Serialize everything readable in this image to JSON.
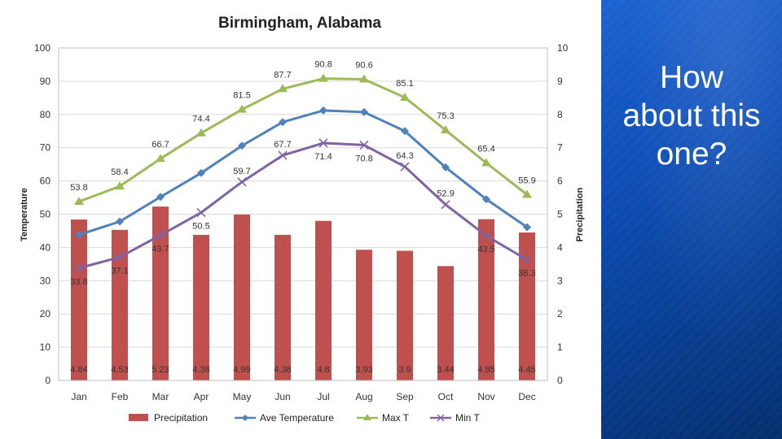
{
  "side": {
    "text_lines": [
      "How",
      "about this",
      "one?"
    ]
  },
  "chart_data": {
    "type": "bar",
    "title": "Birmingham, Alabama",
    "categories": [
      "Jan",
      "Feb",
      "Mar",
      "Apr",
      "May",
      "Jun",
      "Jul",
      "Aug",
      "Sep",
      "Oct",
      "Nov",
      "Dec"
    ],
    "ylabel_left": "Temperature",
    "ylabel_right": "Precipitation",
    "ylim_left": [
      0,
      100
    ],
    "ylim_right": [
      0,
      10
    ],
    "yticks_left": [
      0,
      10,
      20,
      30,
      40,
      50,
      60,
      70,
      80,
      90,
      100
    ],
    "yticks_right": [
      0,
      1,
      2,
      3,
      4,
      5,
      6,
      7,
      8,
      9,
      10
    ],
    "grid": true,
    "legend_position": "bottom",
    "series": [
      {
        "name": "Precipitation",
        "kind": "bar",
        "axis": "right",
        "color": "#c0504d",
        "values": [
          4.84,
          4.53,
          5.23,
          4.38,
          4.99,
          4.38,
          4.8,
          3.93,
          3.9,
          3.44,
          4.85,
          4.45
        ],
        "labels": [
          "4.84",
          "4.53",
          "5.23",
          "4.38",
          "4.99",
          "4.38",
          "4.8",
          "3.93",
          "3.9",
          "3.44",
          "4.85",
          "4.45"
        ]
      },
      {
        "name": "Ave Temperature",
        "kind": "line",
        "axis": "left",
        "color": "#4f81bd",
        "marker": "diamond",
        "values": [
          43.8,
          47.8,
          55.2,
          62.4,
          70.6,
          77.7,
          81.2,
          80.7,
          75.0,
          64.1,
          54.5,
          46.1
        ]
      },
      {
        "name": "Max T",
        "kind": "line",
        "axis": "left",
        "color": "#9bbb59",
        "marker": "triangle",
        "values": [
          53.8,
          58.4,
          66.7,
          74.4,
          81.5,
          87.7,
          90.8,
          90.6,
          85.1,
          75.3,
          65.4,
          55.9
        ],
        "labels": [
          "53.8",
          "58.4",
          "66.7",
          "74.4",
          "81.5",
          "87.7",
          "90.8",
          "90.6",
          "85.1",
          "75.3",
          "65.4",
          "55.9"
        ]
      },
      {
        "name": "Min T",
        "kind": "line",
        "axis": "left",
        "color": "#8064a2",
        "marker": "x",
        "values": [
          33.8,
          37.1,
          43.7,
          50.5,
          59.7,
          67.7,
          71.4,
          70.8,
          64.3,
          52.9,
          43.5,
          36.3
        ],
        "labels": [
          "33.8",
          "37.1",
          "43.7",
          "50.5",
          "59.7",
          "67.7",
          "71.4",
          "70.8",
          "64.3",
          "52.9",
          "43.5",
          "36.3"
        ]
      }
    ]
  }
}
